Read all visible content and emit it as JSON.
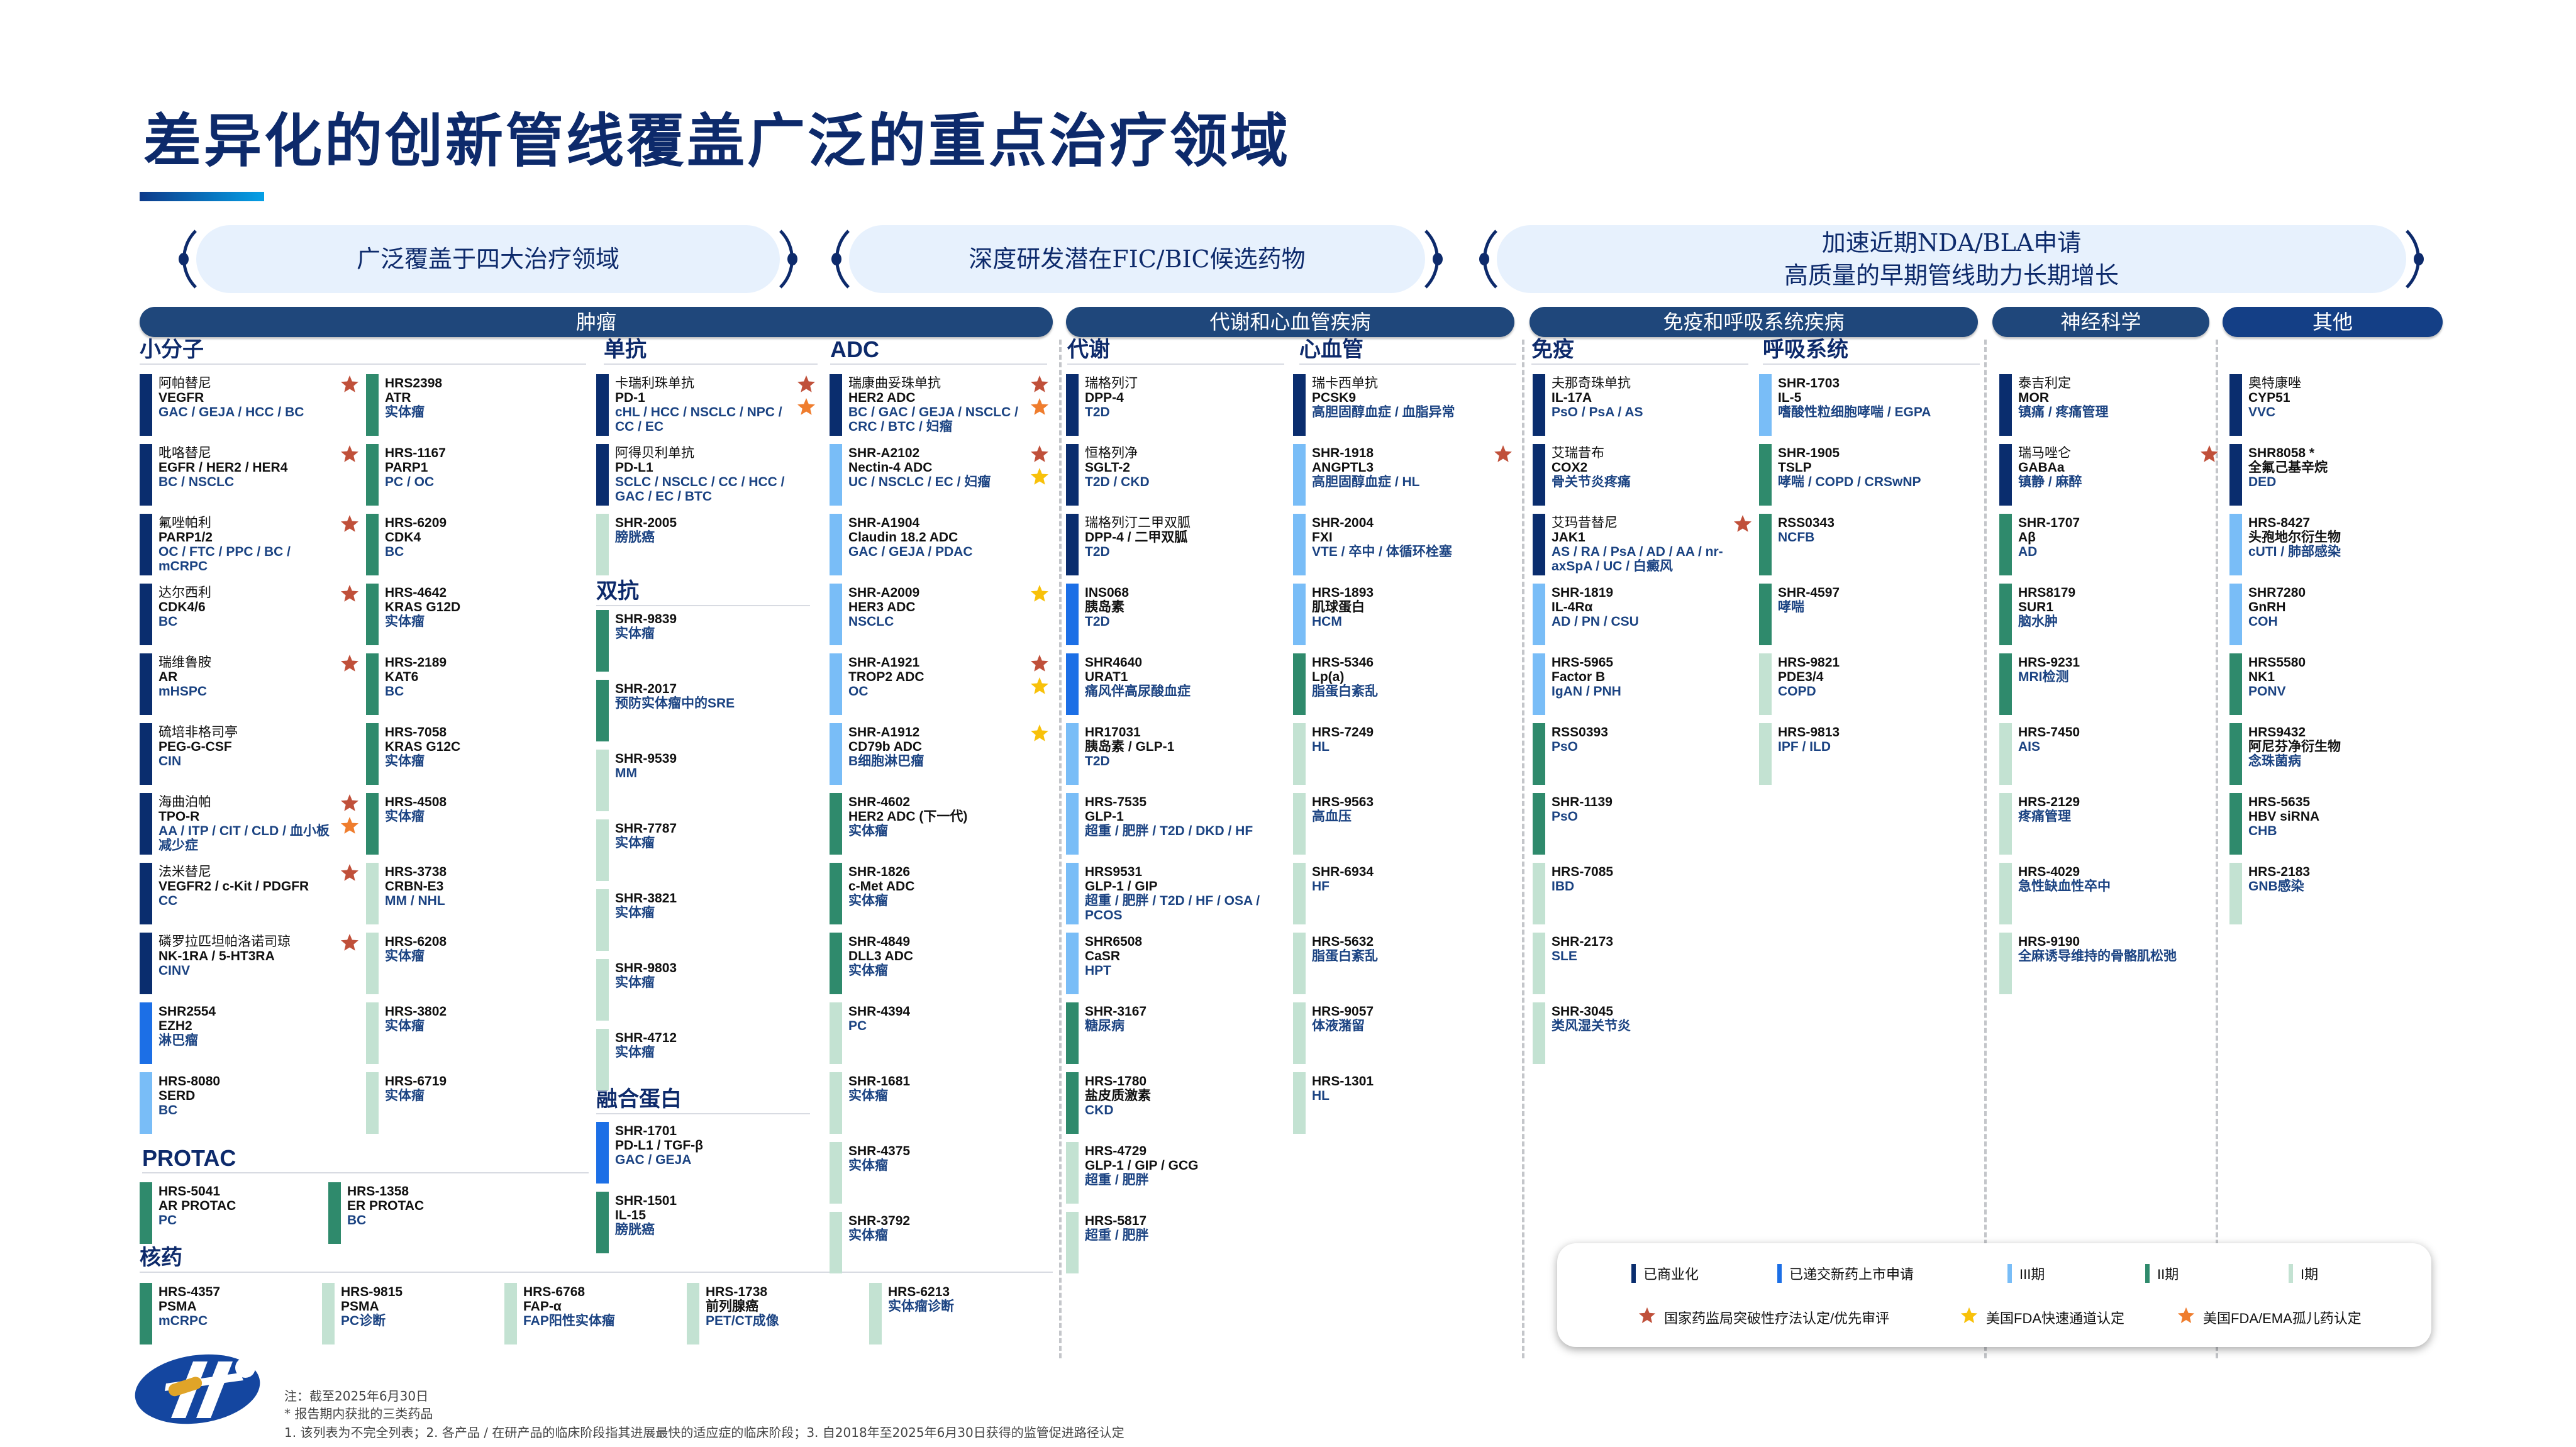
{
  "title": "差异化的创新管线覆盖广泛的重点治疗领域",
  "banners": {
    "b1": "广泛覆盖于四大治疗领域",
    "b2": "深度研发潜在FIC/BIC候选药物",
    "b3_line1": "加速近期NDA/BLA申请",
    "b3_line2": "高质量的早期管线助力长期增长"
  },
  "categories": {
    "oncology": "肿瘤",
    "metabolic": "代谢和心血管疾病",
    "immune": "免疫和呼吸系统疾病",
    "neuro": "神经科学",
    "other": "其他"
  },
  "subheaders": {
    "small_molecule": "小分子",
    "protac": "PROTAC",
    "radiopharma": "核药",
    "mab": "单抗",
    "bispecific": "双抗",
    "fusion": "融合蛋白",
    "adc": "ADC",
    "metabolism": "代谢",
    "cardio": "心血管",
    "immunology": "免疫",
    "respiratory": "呼吸系统"
  },
  "phase_colors": {
    "commercial": "#0a2d6e",
    "nda": "#1c6fe6",
    "p3": "#79bdf7",
    "p2": "#2f8a6c",
    "p1": "#c3e2d2"
  },
  "mark_colors": {
    "nmpa": "#c0503a",
    "fda_fast": "#f8c10a",
    "orphan": "#ef7d2e"
  },
  "pipeline": {
    "small_molecule_a": [
      {
        "name": "阿帕替尼",
        "target": "VEGFR",
        "indication": "GAC / GEJA / HCC / BC",
        "phase": "commercial",
        "marks": [
          "nmpa"
        ]
      },
      {
        "name": "吡咯替尼",
        "target": "EGFR / HER2 / HER4",
        "indication": "BC / NSCLC",
        "phase": "commercial",
        "marks": [
          "nmpa"
        ]
      },
      {
        "name": "氟唑帕利",
        "target": "PARP1/2",
        "indication": "OC / FTC / PPC / BC / mCRPC",
        "phase": "commercial",
        "marks": [
          "nmpa"
        ]
      },
      {
        "name": "达尔西利",
        "target": "CDK4/6",
        "indication": "BC",
        "phase": "commercial",
        "marks": [
          "nmpa"
        ]
      },
      {
        "name": "瑞维鲁胺",
        "target": "AR",
        "indication": "mHSPC",
        "phase": "commercial",
        "marks": [
          "nmpa"
        ]
      },
      {
        "name": "硫培非格司亭",
        "target": "PEG-G-CSF",
        "indication": "CIN",
        "phase": "commercial",
        "marks": []
      },
      {
        "name": "海曲泊帕",
        "target": "TPO-R",
        "indication": "AA / ITP / CIT / CLD / 血小板减少症",
        "phase": "commercial",
        "marks": [
          "nmpa",
          "orphan"
        ]
      },
      {
        "name": "法米替尼",
        "target": "VEGFR2 / c-Kit / PDGFR",
        "indication": "CC",
        "phase": "commercial",
        "marks": [
          "nmpa"
        ]
      },
      {
        "name": "磷罗拉匹坦帕洛诺司琼",
        "target": "NK-1RA / 5-HT3RA",
        "indication": "CINV",
        "phase": "commercial",
        "marks": [
          "nmpa"
        ]
      },
      {
        "name": "SHR2554",
        "target": "EZH2",
        "indication": "淋巴瘤",
        "phase": "nda",
        "marks": []
      },
      {
        "name": "HRS-8080",
        "target": "SERD",
        "indication": "BC",
        "phase": "p3",
        "marks": []
      }
    ],
    "small_molecule_b": [
      {
        "name": "HRS2398",
        "target": "ATR",
        "indication": "实体瘤",
        "phase": "p2",
        "marks": []
      },
      {
        "name": "HRS-1167",
        "target": "PARP1",
        "indication": "PC / OC",
        "phase": "p2",
        "marks": []
      },
      {
        "name": "HRS-6209",
        "target": "CDK4",
        "indication": "BC",
        "phase": "p2",
        "marks": []
      },
      {
        "name": "HRS-4642",
        "target": "KRAS G12D",
        "indication": "实体瘤",
        "phase": "p2",
        "marks": []
      },
      {
        "name": "HRS-2189",
        "target": "KAT6",
        "indication": "BC",
        "phase": "p2",
        "marks": []
      },
      {
        "name": "HRS-7058",
        "target": "KRAS G12C",
        "indication": "实体瘤",
        "phase": "p2",
        "marks": []
      },
      {
        "name": "HRS-4508",
        "indication": "实体瘤",
        "phase": "p2",
        "marks": []
      },
      {
        "name": "HRS-3738",
        "target": "CRBN-E3",
        "indication": "MM / NHL",
        "phase": "p1",
        "marks": []
      },
      {
        "name": "HRS-6208",
        "indication": "实体瘤",
        "phase": "p1",
        "marks": []
      },
      {
        "name": "HRS-3802",
        "indication": "实体瘤",
        "phase": "p1",
        "marks": []
      },
      {
        "name": "HRS-6719",
        "indication": "实体瘤",
        "phase": "p1",
        "marks": []
      }
    ],
    "protac": [
      {
        "name": "HRS-5041",
        "target": "AR PROTAC",
        "indication": "PC",
        "phase": "p2",
        "marks": []
      },
      {
        "name": "HRS-1358",
        "target": "ER PROTAC",
        "indication": "BC",
        "phase": "p2",
        "marks": []
      }
    ],
    "radiopharma": [
      {
        "name": "HRS-4357",
        "target": "PSMA",
        "indication": "mCRPC",
        "phase": "p2",
        "marks": []
      },
      {
        "name": "HRS-9815",
        "target": "PSMA",
        "indication": "PC诊断",
        "phase": "p1",
        "marks": []
      },
      {
        "name": "HRS-6768",
        "target": "FAP-α",
        "indication": "FAP阳性实体瘤",
        "phase": "p1",
        "marks": []
      },
      {
        "name": "HRS-1738",
        "target": "前列腺癌",
        "indication": "PET/CT成像",
        "phase": "p1",
        "marks": []
      },
      {
        "name": "HRS-6213",
        "indication": "实体瘤诊断",
        "phase": "p1",
        "marks": []
      }
    ],
    "mab": [
      {
        "name": "卡瑞利珠单抗",
        "target": "PD-1",
        "indication": "cHL / HCC / NSCLC / NPC / CC / EC",
        "phase": "commercial",
        "marks": [
          "nmpa",
          "orphan"
        ]
      },
      {
        "name": "阿得贝利单抗",
        "target": "PD-L1",
        "indication": "SCLC / NSCLC / CC / HCC / GAC / EC / BTC",
        "phase": "commercial",
        "marks": []
      },
      {
        "name": "SHR-2005",
        "indication": "膀胱癌",
        "phase": "p1",
        "marks": []
      }
    ],
    "bispecific": [
      {
        "name": "SHR-9839",
        "indication": "实体瘤",
        "phase": "p2",
        "marks": []
      },
      {
        "name": "SHR-2017",
        "indication": "预防实体瘤中的SRE",
        "phase": "p2",
        "marks": []
      },
      {
        "name": "SHR-9539",
        "indication": "MM",
        "phase": "p1",
        "marks": []
      },
      {
        "name": "SHR-7787",
        "indication": "实体瘤",
        "phase": "p1",
        "marks": []
      },
      {
        "name": "SHR-3821",
        "indication": "实体瘤",
        "phase": "p1",
        "marks": []
      },
      {
        "name": "SHR-9803",
        "indication": "实体瘤",
        "phase": "p1",
        "marks": []
      },
      {
        "name": "SHR-4712",
        "indication": "实体瘤",
        "phase": "p1",
        "marks": []
      }
    ],
    "fusion": [
      {
        "name": "SHR-1701",
        "target": "PD-L1 / TGF-β",
        "indication": "GAC / GEJA",
        "phase": "nda",
        "marks": []
      },
      {
        "name": "SHR-1501",
        "target": "IL-15",
        "indication": "膀胱癌",
        "phase": "p2",
        "marks": []
      }
    ],
    "adc": [
      {
        "name": "瑞康曲妥珠单抗",
        "target": "HER2 ADC",
        "indication": "BC / GAC / GEJA / NSCLC / CRC / BTC / 妇瘤",
        "phase": "commercial",
        "marks": [
          "nmpa",
          "orphan"
        ]
      },
      {
        "name": "SHR-A2102",
        "target": "Nectin-4 ADC",
        "indication": "UC / NSCLC / EC / 妇瘤",
        "phase": "p3",
        "marks": [
          "nmpa",
          "fda_fast"
        ]
      },
      {
        "name": "SHR-A1904",
        "target": "Claudin 18.2 ADC",
        "indication": "GAC / GEJA / PDAC",
        "phase": "p3",
        "marks": []
      },
      {
        "name": "SHR-A2009",
        "target": "HER3 ADC",
        "indication": "NSCLC",
        "phase": "p3",
        "marks": [
          "fda_fast"
        ]
      },
      {
        "name": "SHR-A1921",
        "target": "TROP2 ADC",
        "indication": "OC",
        "phase": "p3",
        "marks": [
          "nmpa",
          "fda_fast"
        ]
      },
      {
        "name": "SHR-A1912",
        "target": "CD79b ADC",
        "indication": "B细胞淋巴瘤",
        "phase": "p3",
        "marks": [
          "fda_fast"
        ]
      },
      {
        "name": "SHR-4602",
        "target": "HER2 ADC (下一代)",
        "indication": "实体瘤",
        "phase": "p2",
        "marks": []
      },
      {
        "name": "SHR-1826",
        "target": "c-Met ADC",
        "indication": "实体瘤",
        "phase": "p2",
        "marks": []
      },
      {
        "name": "SHR-4849",
        "target": "DLL3 ADC",
        "indication": "实体瘤",
        "phase": "p2",
        "marks": []
      },
      {
        "name": "SHR-4394",
        "indication": "PC",
        "phase": "p1",
        "marks": []
      },
      {
        "name": "SHR-1681",
        "indication": "实体瘤",
        "phase": "p1",
        "marks": []
      },
      {
        "name": "SHR-4375",
        "indication": "实体瘤",
        "phase": "p1",
        "marks": []
      },
      {
        "name": "SHR-3792",
        "indication": "实体瘤",
        "phase": "p1",
        "marks": []
      }
    ],
    "metabolism": [
      {
        "name": "瑞格列汀",
        "target": "DPP-4",
        "indication": "T2D",
        "phase": "commercial",
        "marks": []
      },
      {
        "name": "恒格列净",
        "target": "SGLT-2",
        "indication": "T2D / CKD",
        "phase": "commercial",
        "marks": []
      },
      {
        "name": "瑞格列汀二甲双胍",
        "target": "DPP-4 / 二甲双胍",
        "indication": "T2D",
        "phase": "commercial",
        "marks": []
      },
      {
        "name": "INS068",
        "target": "胰岛素",
        "indication": "T2D",
        "phase": "nda",
        "marks": []
      },
      {
        "name": "SHR4640",
        "target": "URAT1",
        "indication": "痛风伴高尿酸血症",
        "phase": "nda",
        "marks": []
      },
      {
        "name": "HR17031",
        "target": "胰岛素 / GLP-1",
        "indication": "T2D",
        "phase": "p3",
        "marks": []
      },
      {
        "name": "HRS-7535",
        "target": "GLP-1",
        "indication": "超重 / 肥胖 / T2D / DKD / HF",
        "phase": "p3",
        "marks": []
      },
      {
        "name": "HRS9531",
        "target": "GLP-1 / GIP",
        "indication": "超重 / 肥胖 / T2D / HF / OSA / PCOS",
        "phase": "p3",
        "marks": []
      },
      {
        "name": "SHR6508",
        "target": "CaSR",
        "indication": "HPT",
        "phase": "p3",
        "marks": []
      },
      {
        "name": "SHR-3167",
        "indication": "糖尿病",
        "phase": "p2",
        "marks": []
      },
      {
        "name": "HRS-1780",
        "target": "盐皮质激素",
        "indication": "CKD",
        "phase": "p2",
        "marks": []
      },
      {
        "name": "HRS-4729",
        "target": "GLP-1 / GIP / GCG",
        "indication": "超重 / 肥胖",
        "phase": "p1",
        "marks": []
      },
      {
        "name": "HRS-5817",
        "indication": "超重 / 肥胖",
        "phase": "p1",
        "marks": []
      }
    ],
    "cardio": [
      {
        "name": "瑞卡西单抗",
        "target": "PCSK9",
        "indication": "高胆固醇血症 / 血脂异常",
        "phase": "commercial",
        "marks": []
      },
      {
        "name": "SHR-1918",
        "target": "ANGPTL3",
        "indication": "高胆固醇血症 / HL",
        "phase": "p3",
        "marks": [
          "nmpa"
        ]
      },
      {
        "name": "SHR-2004",
        "target": "FXI",
        "indication": "VTE / 卒中 / 体循环栓塞",
        "phase": "p3",
        "marks": []
      },
      {
        "name": "HRS-1893",
        "target": "肌球蛋白",
        "indication": "HCM",
        "phase": "p3",
        "marks": []
      },
      {
        "name": "HRS-5346",
        "target": "Lp(a)",
        "indication": "脂蛋白紊乱",
        "phase": "p2",
        "marks": []
      },
      {
        "name": "HRS-7249",
        "indication": "HL",
        "phase": "p1",
        "marks": []
      },
      {
        "name": "HRS-9563",
        "indication": "高血压",
        "phase": "p1",
        "marks": []
      },
      {
        "name": "SHR-6934",
        "indication": "HF",
        "phase": "p1",
        "marks": []
      },
      {
        "name": "HRS-5632",
        "indication": "脂蛋白紊乱",
        "phase": "p1",
        "marks": []
      },
      {
        "name": "HRS-9057",
        "indication": "体液潴留",
        "phase": "p1",
        "marks": []
      },
      {
        "name": "HRS-1301",
        "indication": "HL",
        "phase": "p1",
        "marks": []
      }
    ],
    "immunology": [
      {
        "name": "夫那奇珠单抗",
        "target": "IL-17A",
        "indication": "PsO / PsA / AS",
        "phase": "commercial",
        "marks": []
      },
      {
        "name": "艾瑞昔布",
        "target": "COX2",
        "indication": "骨关节炎疼痛",
        "phase": "commercial",
        "marks": []
      },
      {
        "name": "艾玛昔替尼",
        "target": "JAK1",
        "indication": "AS / RA / PsA / AD / AA / nr-axSpA / UC / 白癜风",
        "phase": "commercial",
        "marks": [
          "nmpa"
        ]
      },
      {
        "name": "SHR-1819",
        "target": "IL-4Rα",
        "indication": "AD / PN / CSU",
        "phase": "p3",
        "marks": []
      },
      {
        "name": "HRS-5965",
        "target": "Factor B",
        "indication": "IgAN / PNH",
        "phase": "p3",
        "marks": []
      },
      {
        "name": "RSS0393",
        "indication": "PsO",
        "phase": "p2",
        "marks": []
      },
      {
        "name": "SHR-1139",
        "indication": "PsO",
        "phase": "p2",
        "marks": []
      },
      {
        "name": "HRS-7085",
        "indication": "IBD",
        "phase": "p1",
        "marks": []
      },
      {
        "name": "SHR-2173",
        "indication": "SLE",
        "phase": "p1",
        "marks": []
      },
      {
        "name": "SHR-3045",
        "indication": "类风湿关节炎",
        "phase": "p1",
        "marks": []
      }
    ],
    "respiratory": [
      {
        "name": "SHR-1703",
        "target": "IL-5",
        "indication": "嗜酸性粒细胞哮喘 / EGPA",
        "phase": "p3",
        "marks": []
      },
      {
        "name": "SHR-1905",
        "target": "TSLP",
        "indication": "哮喘 / COPD / CRSwNP",
        "phase": "p2",
        "marks": []
      },
      {
        "name": "RSS0343",
        "indication": "NCFB",
        "phase": "p2",
        "marks": []
      },
      {
        "name": "SHR-4597",
        "indication": "哮喘",
        "phase": "p2",
        "marks": []
      },
      {
        "name": "HRS-9821",
        "target": "PDE3/4",
        "indication": "COPD",
        "phase": "p1",
        "marks": []
      },
      {
        "name": "HRS-9813",
        "indication": "IPF / ILD",
        "phase": "p1",
        "marks": []
      }
    ],
    "neuro": [
      {
        "name": "泰吉利定",
        "target": "MOR",
        "indication": "镇痛 / 疼痛管理",
        "phase": "commercial",
        "marks": []
      },
      {
        "name": "瑞马唑仑",
        "target": "GABAa",
        "indication": "镇静 / 麻醉",
        "phase": "commercial",
        "marks": [
          "nmpa"
        ]
      },
      {
        "name": "SHR-1707",
        "target": "Aβ",
        "indication": "AD",
        "phase": "p2",
        "marks": []
      },
      {
        "name": "HRS8179",
        "target": "SUR1",
        "indication": "脑水肿",
        "phase": "p2",
        "marks": []
      },
      {
        "name": "HRS-9231",
        "indication": "MRI检测",
        "phase": "p2",
        "marks": []
      },
      {
        "name": "HRS-7450",
        "indication": "AIS",
        "phase": "p1",
        "marks": []
      },
      {
        "name": "HRS-2129",
        "indication": "疼痛管理",
        "phase": "p1",
        "marks": []
      },
      {
        "name": "HRS-4029",
        "indication": "急性缺血性卒中",
        "phase": "p1",
        "marks": []
      },
      {
        "name": "HRS-9190",
        "indication": "全麻诱导维持的骨骼肌松弛",
        "phase": "p1",
        "marks": []
      }
    ],
    "other": [
      {
        "name": "奥特康唑",
        "target": "CYP51",
        "indication": "VVC",
        "phase": "commercial",
        "marks": []
      },
      {
        "name": "SHR8058 *",
        "target": "全氟己基辛烷",
        "indication": "DED",
        "phase": "commercial",
        "marks": []
      },
      {
        "name": "HRS-8427",
        "target": "头孢地尔衍生物",
        "indication": "cUTI / 肺部感染",
        "phase": "p3",
        "marks": []
      },
      {
        "name": "SHR7280",
        "target": "GnRH",
        "indication": "COH",
        "phase": "p3",
        "marks": []
      },
      {
        "name": "HRS5580",
        "target": "NK1",
        "indication": "PONV",
        "phase": "p2",
        "marks": []
      },
      {
        "name": "HRS9432",
        "target": "阿尼芬净衍生物",
        "indication": "念珠菌病",
        "phase": "p2",
        "marks": []
      },
      {
        "name": "HRS-5635",
        "target": "HBV siRNA",
        "indication": "CHB",
        "phase": "p2",
        "marks": []
      },
      {
        "name": "HRS-2183",
        "indication": "GNB感染",
        "phase": "p1",
        "marks": []
      }
    ]
  },
  "legend": {
    "phases": [
      {
        "label": "已商业化",
        "phase": "commercial"
      },
      {
        "label": "已递交新药上市申请",
        "phase": "nda"
      },
      {
        "label": "III期",
        "phase": "p3"
      },
      {
        "label": "II期",
        "phase": "p2"
      },
      {
        "label": "I期",
        "phase": "p1"
      }
    ],
    "marks": [
      {
        "label": "国家药监局突破性疗法认定/优先审评",
        "mark": "nmpa"
      },
      {
        "label": "美国FDA快速通道认定",
        "mark": "fda_fast"
      },
      {
        "label": "美国FDA/EMA孤儿药认定",
        "mark": "orphan"
      }
    ]
  },
  "footnotes": [
    "注：截至2025年6月30日",
    "* 报告期内获批的三类药品",
    "1. 该列表为不完全列表；2. 各产品 / 在研产品的临床阶段指其进展最快的适应症的临床阶段；3. 自2018年至2025年6月30日获得的监管促进路径认定"
  ]
}
